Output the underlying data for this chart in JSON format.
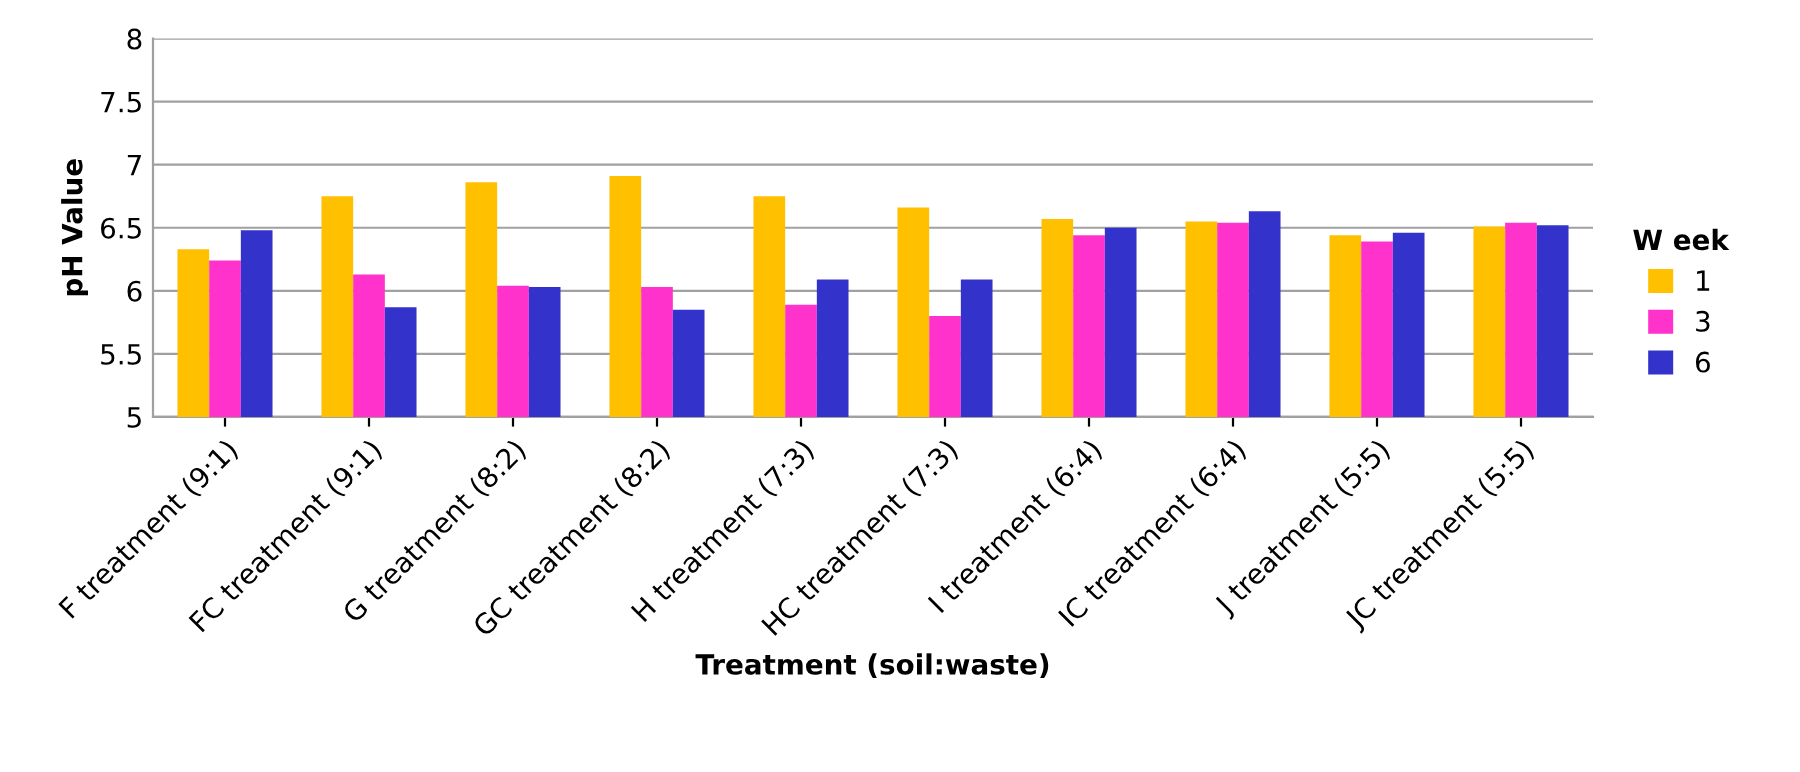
{
  "chart_data": {
    "type": "bar",
    "xlabel": "Treatment (soil:waste)",
    "ylabel": "pH Value",
    "legend_title": "W eek",
    "categories": [
      "F treatment (9:1)",
      "FC treatment (9:1)",
      "G treatment (8:2)",
      "GC treatment (8:2)",
      "H treatment (7:3)",
      "HC treatment (7:3)",
      "I treatment (6:4)",
      "IC treatment (6:4)",
      "J treatment (5:5)",
      "JC treatment (5:5)"
    ],
    "series": [
      {
        "name": "1",
        "color": "#ffc000",
        "values": [
          6.33,
          6.75,
          6.86,
          6.91,
          6.75,
          6.66,
          6.57,
          6.55,
          6.44,
          6.51
        ]
      },
      {
        "name": "3",
        "color": "#ff33cc",
        "values": [
          6.24,
          6.13,
          6.04,
          6.03,
          5.89,
          5.8,
          6.44,
          6.54,
          6.39,
          6.54
        ]
      },
      {
        "name": "6",
        "color": "#3333cc",
        "values": [
          6.48,
          5.87,
          6.03,
          5.85,
          6.09,
          6.09,
          6.5,
          6.63,
          6.46,
          6.52
        ]
      }
    ],
    "ylim": [
      5,
      8
    ],
    "yticks": [
      5,
      5.5,
      6,
      6.5,
      7,
      7.5,
      8
    ],
    "grid": "y",
    "legend": "right"
  }
}
